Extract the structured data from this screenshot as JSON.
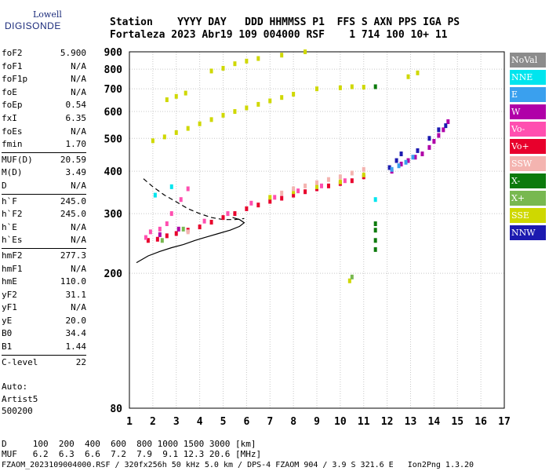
{
  "logo": {
    "line1": "Lowell",
    "line2": "DIGISONDE"
  },
  "header": {
    "line1": "Station    YYYY DAY   DDD HHMMSS P1  FFS S AXN PPS IGA PS",
    "line2": "Fortaleza 2023 Abr19 109 004000 RSF    1 714 100 10+ 11"
  },
  "params": [
    {
      "k": "foF2",
      "v": "5.900"
    },
    {
      "k": "foF1",
      "v": "N/A"
    },
    {
      "k": "foF1p",
      "v": "N/A"
    },
    {
      "k": "foE",
      "v": "N/A"
    },
    {
      "k": "foEp",
      "v": "0.54"
    },
    {
      "k": "fxI",
      "v": "6.35"
    },
    {
      "k": "foEs",
      "v": "N/A"
    },
    {
      "k": "fmin",
      "v": "1.70"
    },
    {
      "k": "MUF(D)",
      "v": "20.59",
      "sep": true
    },
    {
      "k": "M(D)",
      "v": "3.49"
    },
    {
      "k": "D",
      "v": "N/A"
    },
    {
      "k": "h`F",
      "v": "245.0",
      "sep": true
    },
    {
      "k": "h`F2",
      "v": "245.0"
    },
    {
      "k": "h`E",
      "v": "N/A"
    },
    {
      "k": "h`Es",
      "v": "N/A"
    },
    {
      "k": "hmF2",
      "v": "277.3",
      "sep": true
    },
    {
      "k": "hmF1",
      "v": "N/A"
    },
    {
      "k": "hmE",
      "v": "110.0"
    },
    {
      "k": "yF2",
      "v": "31.1"
    },
    {
      "k": "yF1",
      "v": "N/A"
    },
    {
      "k": "yE",
      "v": "20.0"
    },
    {
      "k": "B0",
      "v": "34.4"
    },
    {
      "k": "B1",
      "v": "1.44"
    },
    {
      "k": "C-level",
      "v": "22",
      "sep": true
    }
  ],
  "auto": {
    "l1": "Auto:",
    "l2": "Artist5",
    "l3": "500200"
  },
  "legend": [
    {
      "label": "NoVal",
      "color": "#8c8c8c"
    },
    {
      "label": "NNE",
      "color": "#00e5ee"
    },
    {
      "label": "E",
      "color": "#3aa0ee"
    },
    {
      "label": "W",
      "color": "#b000a8"
    },
    {
      "label": "Vo-",
      "color": "#ff4fb0"
    },
    {
      "label": "Vo+",
      "color": "#e8002c"
    },
    {
      "label": "SSW",
      "color": "#f4b4b0"
    },
    {
      "label": "X-",
      "color": "#0c7a0c"
    },
    {
      "label": "X+",
      "color": "#78b850"
    },
    {
      "label": "SSE",
      "color": "#cfd800"
    },
    {
      "label": "NNW",
      "color": "#1c1ab0"
    }
  ],
  "bottom": {
    "d_line": "D     100  200  400  600  800 1000 1500 3000 [km]",
    "muf_line": "MUF   6.2  6.3  6.6  7.2  7.9  9.1 12.3 20.6 [MHz]",
    "footer": "FZAOM_2023109004000.RSF / 320fx256h 50 kHz 5.0 km / DPS-4 FZAOM 904 / 3.9 S 321.6 E   Ion2Png 1.3.20"
  },
  "chart_data": {
    "type": "scatter",
    "xlim": [
      1,
      17
    ],
    "ylim": [
      80,
      900
    ],
    "y_scale": "log",
    "x_ticks": [
      1,
      2,
      3,
      4,
      5,
      6,
      7,
      8,
      9,
      10,
      11,
      12,
      13,
      14,
      15,
      16,
      17
    ],
    "y_ticks": [
      80,
      200,
      300,
      400,
      500,
      600,
      700,
      800,
      900
    ],
    "grid": true,
    "series": [
      {
        "color": "#e8002c",
        "points": [
          [
            1.8,
            250
          ],
          [
            2.2,
            252
          ],
          [
            2.6,
            258
          ],
          [
            3.0,
            262
          ],
          [
            3.5,
            268
          ],
          [
            4.0,
            274
          ],
          [
            4.5,
            283
          ],
          [
            5.0,
            292
          ],
          [
            5.5,
            300
          ],
          [
            6.0,
            310
          ],
          [
            6.5,
            318
          ],
          [
            7.0,
            326
          ],
          [
            7.5,
            333
          ],
          [
            8.0,
            340
          ],
          [
            8.5,
            348
          ],
          [
            9.0,
            355
          ],
          [
            9.5,
            362
          ],
          [
            10.0,
            368
          ],
          [
            10.5,
            375
          ],
          [
            11.0,
            385
          ]
        ]
      },
      {
        "color": "#ff4fb0",
        "points": [
          [
            1.9,
            265
          ],
          [
            2.3,
            270
          ],
          [
            2.6,
            280
          ],
          [
            2.8,
            300
          ],
          [
            3.2,
            330
          ],
          [
            3.5,
            355
          ],
          [
            1.7,
            255
          ],
          [
            4.2,
            285
          ],
          [
            5.2,
            300
          ],
          [
            6.2,
            322
          ],
          [
            7.2,
            335
          ],
          [
            8.2,
            350
          ],
          [
            9.2,
            362
          ],
          [
            10.2,
            375
          ]
        ]
      },
      {
        "color": "#cfd800",
        "points": [
          [
            2.0,
            492
          ],
          [
            2.5,
            505
          ],
          [
            3.0,
            520
          ],
          [
            3.5,
            535
          ],
          [
            4.0,
            552
          ],
          [
            4.5,
            568
          ],
          [
            5.0,
            585
          ],
          [
            5.5,
            600
          ],
          [
            6.0,
            615
          ],
          [
            6.5,
            630
          ],
          [
            7.0,
            645
          ],
          [
            7.5,
            660
          ],
          [
            8.0,
            675
          ],
          [
            9.0,
            700
          ],
          [
            10.0,
            705
          ],
          [
            10.5,
            710
          ],
          [
            11.0,
            708
          ],
          [
            2.6,
            650
          ],
          [
            3.0,
            665
          ],
          [
            3.4,
            680
          ],
          [
            4.5,
            790
          ],
          [
            5.0,
            805
          ],
          [
            5.5,
            830
          ],
          [
            6.0,
            845
          ],
          [
            6.5,
            860
          ],
          [
            7.5,
            880
          ],
          [
            8.5,
            900
          ],
          [
            7.0,
            335
          ],
          [
            8.0,
            348
          ],
          [
            9.0,
            360
          ],
          [
            10.0,
            372
          ],
          [
            11.0,
            390
          ],
          [
            12.9,
            760
          ],
          [
            13.3,
            780
          ],
          [
            10.4,
            190
          ]
        ]
      },
      {
        "color": "#b000a8",
        "points": [
          [
            12.6,
            420
          ],
          [
            12.9,
            430
          ],
          [
            13.2,
            440
          ],
          [
            13.5,
            450
          ],
          [
            13.8,
            470
          ],
          [
            14.0,
            490
          ],
          [
            14.2,
            510
          ],
          [
            14.4,
            530
          ],
          [
            14.6,
            560
          ],
          [
            12.2,
            400
          ],
          [
            2.3,
            260
          ],
          [
            3.1,
            270
          ]
        ]
      },
      {
        "color": "#1c1ab0",
        "points": [
          [
            12.4,
            430
          ],
          [
            12.6,
            450
          ],
          [
            13.3,
            460
          ],
          [
            13.8,
            500
          ],
          [
            14.2,
            530
          ],
          [
            14.5,
            545
          ],
          [
            12.1,
            410
          ]
        ]
      },
      {
        "color": "#3aa0ee",
        "points": [
          [
            12.2,
            405
          ],
          [
            12.5,
            415
          ],
          [
            12.8,
            425
          ],
          [
            13.1,
            440
          ]
        ]
      },
      {
        "color": "#f4b4b0",
        "points": [
          [
            8.0,
            355
          ],
          [
            8.5,
            362
          ],
          [
            9.0,
            370
          ],
          [
            9.5,
            378
          ],
          [
            10.0,
            385
          ],
          [
            10.5,
            395
          ],
          [
            11.0,
            405
          ],
          [
            7.5,
            345
          ],
          [
            3.5,
            265
          ]
        ]
      },
      {
        "color": "#0c7a0c",
        "points": [
          [
            11.5,
            280
          ],
          [
            11.5,
            268
          ],
          [
            11.5,
            250
          ],
          [
            11.5,
            235
          ],
          [
            11.5,
            710
          ]
        ]
      },
      {
        "color": "#78b850",
        "points": [
          [
            10.5,
            195
          ],
          [
            2.4,
            250
          ],
          [
            3.3,
            270
          ]
        ]
      },
      {
        "color": "#00e5ee",
        "points": [
          [
            11.5,
            330
          ],
          [
            2.1,
            340
          ],
          [
            2.8,
            360
          ]
        ]
      }
    ],
    "curves": [
      {
        "style": "dashed",
        "points": [
          [
            1.6,
            380
          ],
          [
            2.0,
            360
          ],
          [
            2.5,
            340
          ],
          [
            3.0,
            325
          ],
          [
            3.5,
            310
          ],
          [
            4.0,
            300
          ],
          [
            4.5,
            292
          ],
          [
            5.0,
            288
          ],
          [
            5.5,
            288
          ],
          [
            5.9,
            290
          ]
        ]
      },
      {
        "style": "solid",
        "points": [
          [
            1.3,
            215
          ],
          [
            1.8,
            225
          ],
          [
            2.3,
            232
          ],
          [
            2.8,
            238
          ],
          [
            3.3,
            243
          ],
          [
            3.8,
            250
          ],
          [
            4.3,
            256
          ],
          [
            4.8,
            262
          ],
          [
            5.3,
            268
          ],
          [
            5.7,
            275
          ],
          [
            5.9,
            282
          ],
          [
            5.7,
            288
          ],
          [
            5.4,
            292
          ]
        ]
      }
    ]
  }
}
